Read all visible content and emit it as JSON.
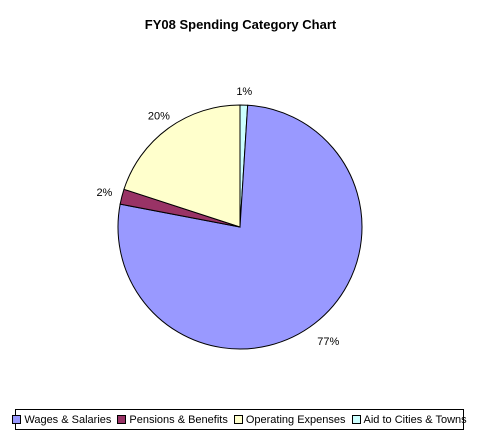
{
  "chart_data": {
    "type": "pie",
    "title": "FY08 Spending Category Chart",
    "categories": [
      "Wages & Salaries",
      "Pensions & Benefits",
      "Operating Expenses",
      "Aid to Cities & Towns"
    ],
    "values": [
      77,
      2,
      20,
      1
    ],
    "labels": [
      "77%",
      "2%",
      "20%",
      "1%"
    ],
    "colors": [
      "#9999FF",
      "#993366",
      "#FFFFCC",
      "#CCFFFF"
    ],
    "legend_position": "bottom"
  }
}
